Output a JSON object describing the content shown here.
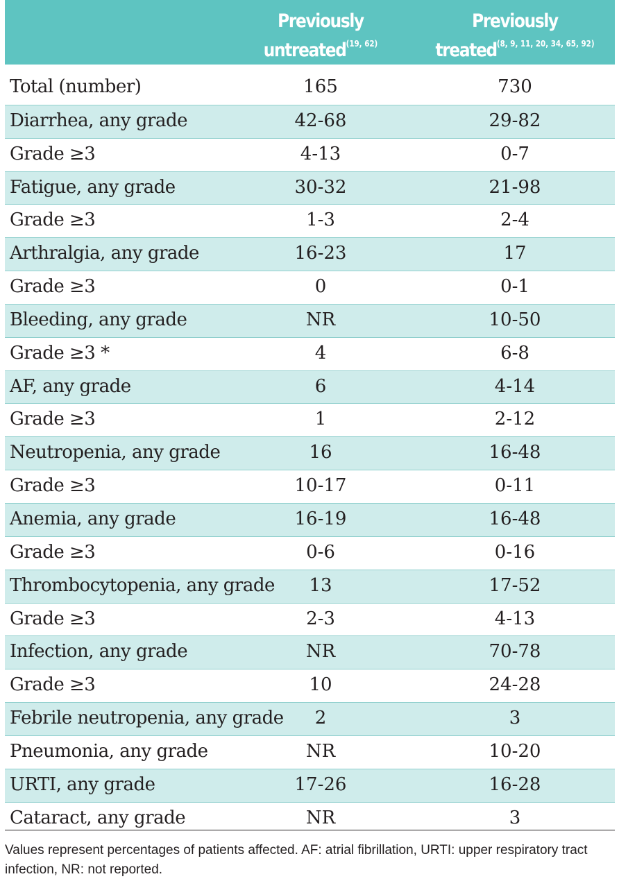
{
  "header": {
    "col1_main": "Previously",
    "col1_sub": "untreated",
    "col1_ref": "(19, 62)",
    "col2_main": "Previously",
    "col2_sub": "treated",
    "col2_ref": "(8, 9, 11, 20, 34, 65, 92)"
  },
  "rows": [
    {
      "label": "Total (number)",
      "untreated": "165",
      "treated": "730",
      "shaded": false
    },
    {
      "label": "Diarrhea, any grade",
      "untreated": "42-68",
      "treated": "29-82",
      "shaded": true
    },
    {
      "label": "Grade ≥3",
      "untreated": "4-13",
      "treated": "0-7",
      "shaded": false
    },
    {
      "label": "Fatigue, any grade",
      "untreated": "30-32",
      "treated": "21-98",
      "shaded": true
    },
    {
      "label": "Grade ≥3",
      "untreated": "1-3",
      "treated": "2-4",
      "shaded": false
    },
    {
      "label": "Arthralgia, any grade",
      "untreated": "16-23",
      "treated": "17",
      "shaded": true
    },
    {
      "label": "Grade ≥3",
      "untreated": "0",
      "treated": "0-1",
      "shaded": false
    },
    {
      "label": "Bleeding, any grade",
      "untreated": "NR",
      "treated": "10-50",
      "shaded": true
    },
    {
      "label": "Grade ≥3 *",
      "untreated": "4",
      "treated": "6-8",
      "shaded": false
    },
    {
      "label": "AF, any grade",
      "untreated": "6",
      "treated": "4-14",
      "shaded": true
    },
    {
      "label": "Grade ≥3",
      "untreated": "1",
      "treated": "2-12",
      "shaded": false
    },
    {
      "label": "Neutropenia, any grade",
      "untreated": "16",
      "treated": "16-48",
      "shaded": true
    },
    {
      "label": "Grade ≥3",
      "untreated": "10-17",
      "treated": "0-11",
      "shaded": false
    },
    {
      "label": "Anemia, any grade",
      "untreated": "16-19",
      "treated": "16-48",
      "shaded": true
    },
    {
      "label": "Grade ≥3",
      "untreated": "0-6",
      "treated": "0-16",
      "shaded": false
    },
    {
      "label": "Thrombocytopenia, any grade",
      "untreated": "13",
      "treated": "17-52",
      "shaded": true
    },
    {
      "label": "Grade ≥3",
      "untreated": "2-3",
      "treated": "4-13",
      "shaded": false
    },
    {
      "label": "Infection, any grade",
      "untreated": "NR",
      "treated": "70-78",
      "shaded": true
    },
    {
      "label": "Grade ≥3",
      "untreated": "10",
      "treated": "24-28",
      "shaded": false
    },
    {
      "label": "Febrile neutropenia, any grade",
      "untreated": "2",
      "treated": "3",
      "shaded": true
    },
    {
      "label": "Pneumonia, any grade",
      "untreated": "NR",
      "treated": "10-20",
      "shaded": false
    },
    {
      "label": "URTI, any grade",
      "untreated": "17-26",
      "treated": "16-28",
      "shaded": true
    },
    {
      "label": "Cataract, any grade",
      "untreated": "NR",
      "treated": "3",
      "shaded": false
    }
  ],
  "footnote": "Values represent percentages of patients affected. AF: atrial fibrillation, URTI: upper respiratory tract infection, NR: not reported."
}
